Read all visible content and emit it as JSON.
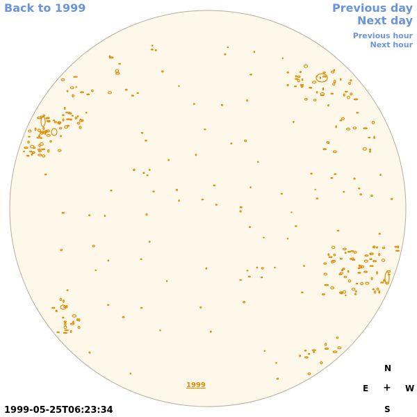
{
  "nav": {
    "back": "Back to 1999",
    "previous_day": "Previous day",
    "next_day": "Next day",
    "previous_hour": "Previous hour",
    "next_hour": "Next hour"
  },
  "timestamp": "1999-05-25T06:23:34",
  "year_link": "1999",
  "compass": {
    "north": "N",
    "east": "E",
    "center": "+",
    "west": "W",
    "south": "S"
  },
  "colors": {
    "nav_link": "#6a95dc",
    "disk_fill": "#fdf8ea",
    "disk_border": "#b5ad9c",
    "contour": "#e08a00"
  }
}
